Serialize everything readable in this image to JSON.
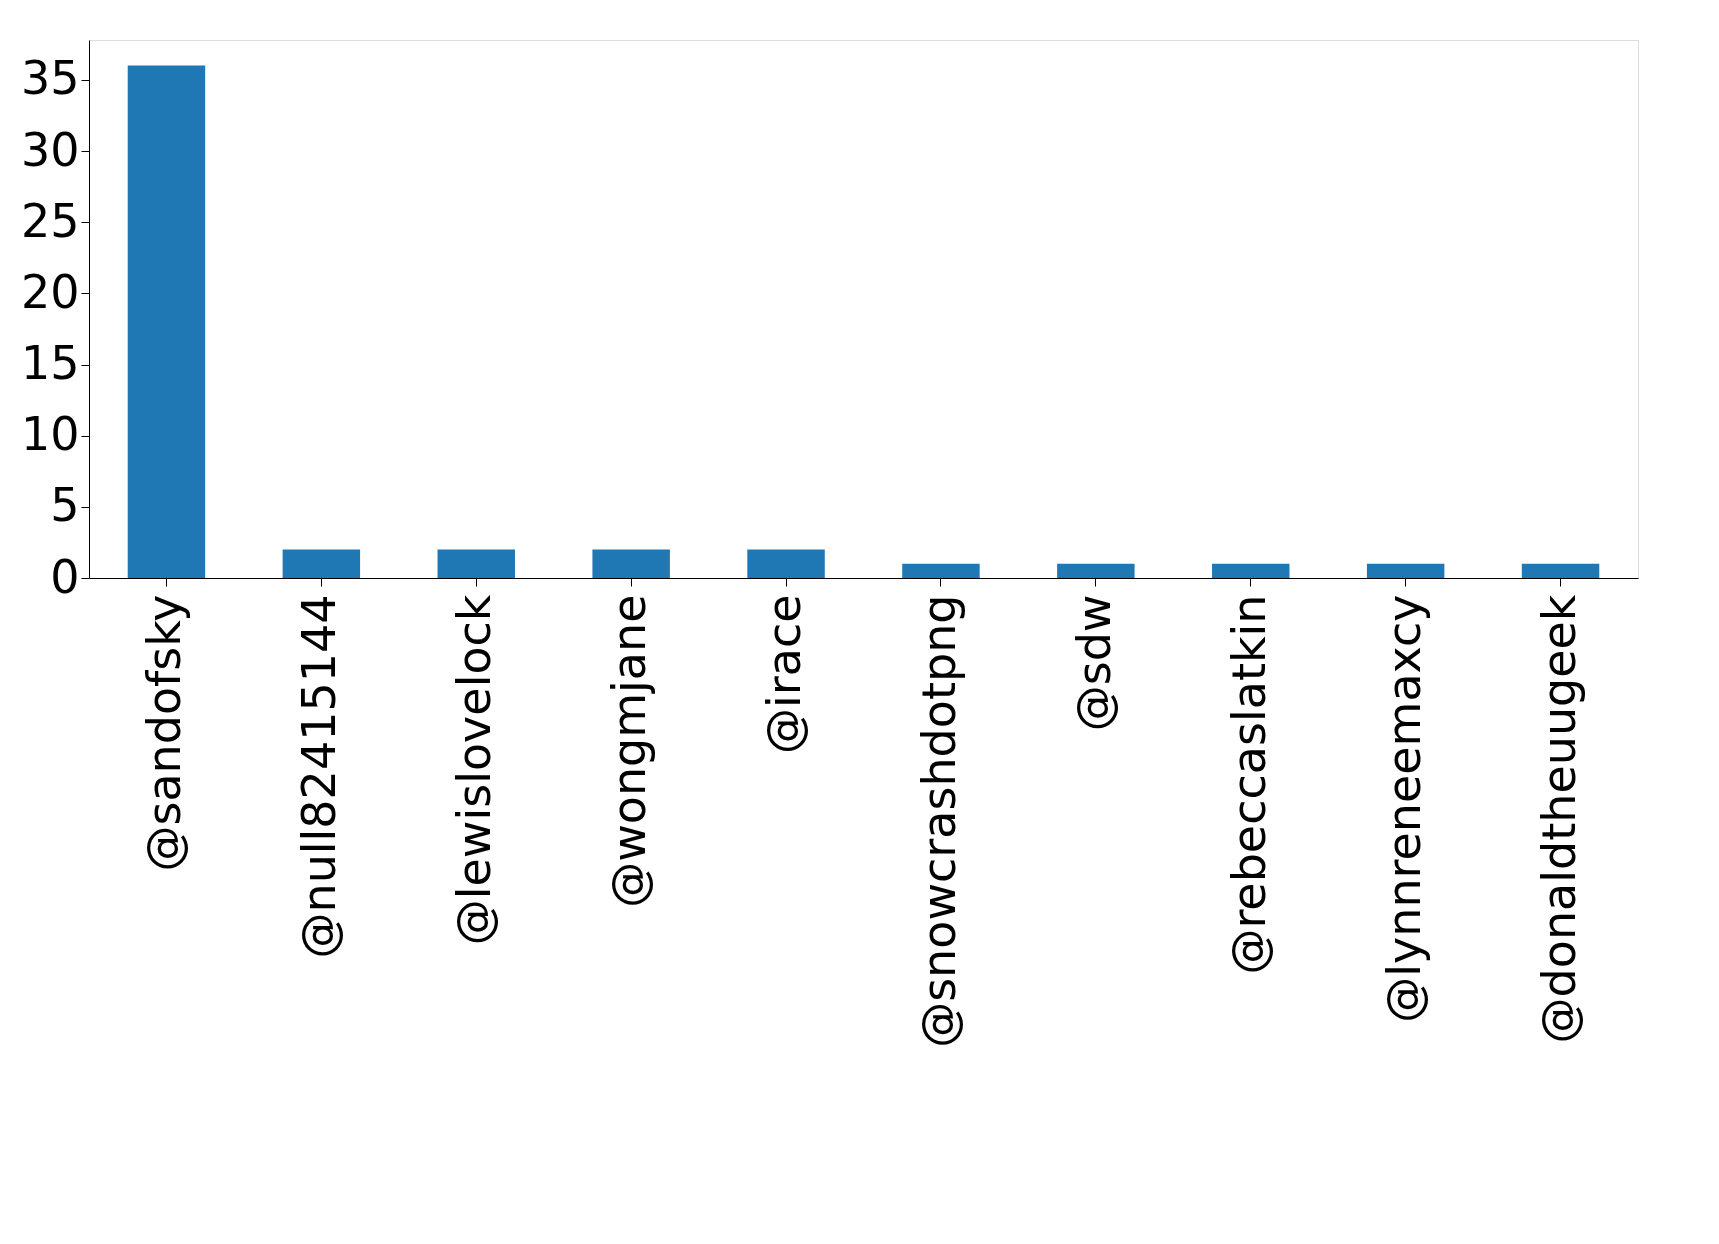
{
  "chart_data": {
    "type": "bar",
    "categories": [
      "@sandofsky",
      "@null82415144",
      "@lewislovelock",
      "@wongmjane",
      "@irace",
      "@snowcrashdotpng",
      "@sdw",
      "@rebeccaslatkin",
      "@lynnreneemaxcy",
      "@donaldtheuugeek"
    ],
    "values": [
      36,
      2,
      2,
      2,
      2,
      1,
      1,
      1,
      1,
      1
    ],
    "color": "#1f77b4",
    "ylim": [
      0,
      37.8
    ],
    "yticks": [
      0,
      5,
      10,
      15,
      20,
      25,
      30,
      35
    ],
    "grid": false
  }
}
